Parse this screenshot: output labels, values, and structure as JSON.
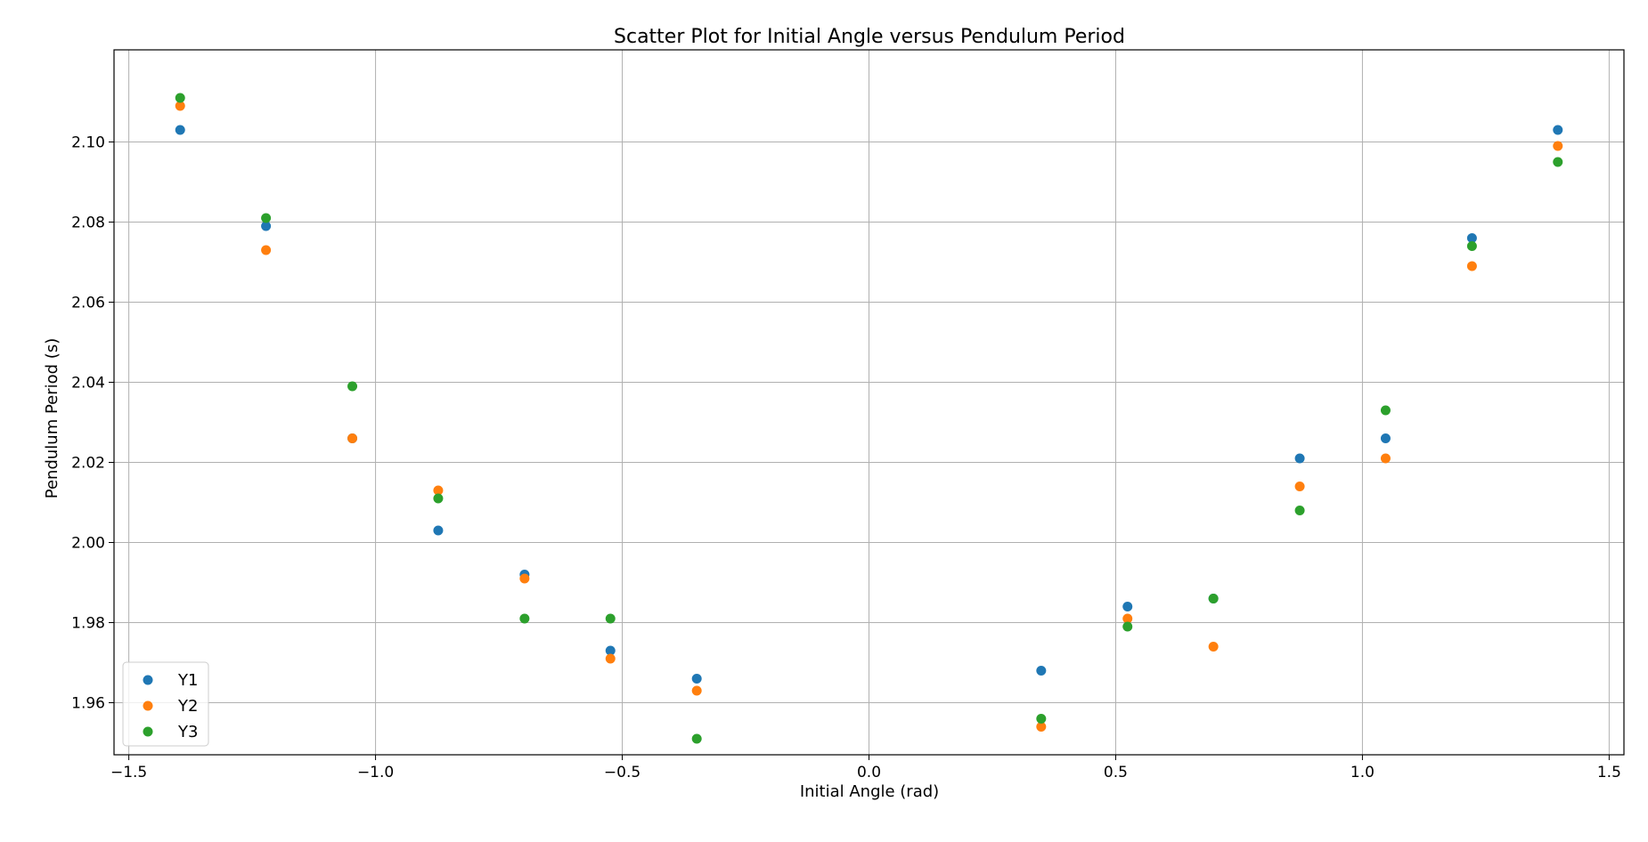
{
  "chart_data": {
    "type": "scatter",
    "title": "Scatter Plot for Initial Angle versus Pendulum Period",
    "xlabel": "Initial Angle (rad)",
    "ylabel": "Pendulum Period (s)",
    "xlim": [
      -1.53,
      1.53
    ],
    "ylim": [
      1.947,
      2.123
    ],
    "xticks": [
      -1.5,
      -1.0,
      -0.5,
      0.0,
      0.5,
      1.0,
      1.5
    ],
    "xtick_labels": [
      "−1.5",
      "−1.0",
      "−0.5",
      "0.0",
      "0.5",
      "1.0",
      "1.5"
    ],
    "yticks": [
      1.96,
      1.98,
      2.0,
      2.02,
      2.04,
      2.06,
      2.08,
      2.1
    ],
    "ytick_labels": [
      "1.96",
      "1.98",
      "2.00",
      "2.02",
      "2.04",
      "2.06",
      "2.08",
      "2.10"
    ],
    "grid": true,
    "legend_position": "lower-left",
    "x": [
      -1.396,
      -1.222,
      -1.047,
      -0.873,
      -0.698,
      -0.524,
      -0.349,
      0.349,
      0.524,
      0.698,
      0.873,
      1.047,
      1.222,
      1.396
    ],
    "series": [
      {
        "name": "Y1",
        "color": "#1f77b4",
        "values": [
          2.103,
          2.079,
          2.026,
          2.003,
          1.992,
          1.973,
          1.966,
          1.968,
          1.984,
          1.986,
          2.021,
          2.026,
          2.076,
          2.103
        ]
      },
      {
        "name": "Y2",
        "color": "#ff7f0e",
        "values": [
          2.109,
          2.073,
          2.026,
          2.013,
          1.991,
          1.971,
          1.963,
          1.954,
          1.981,
          1.974,
          2.014,
          2.021,
          2.069,
          2.099
        ]
      },
      {
        "name": "Y3",
        "color": "#2ca02c",
        "values": [
          2.111,
          2.081,
          2.039,
          2.011,
          1.981,
          1.981,
          1.951,
          1.956,
          1.979,
          1.986,
          2.008,
          2.033,
          2.074,
          2.095
        ]
      }
    ]
  }
}
